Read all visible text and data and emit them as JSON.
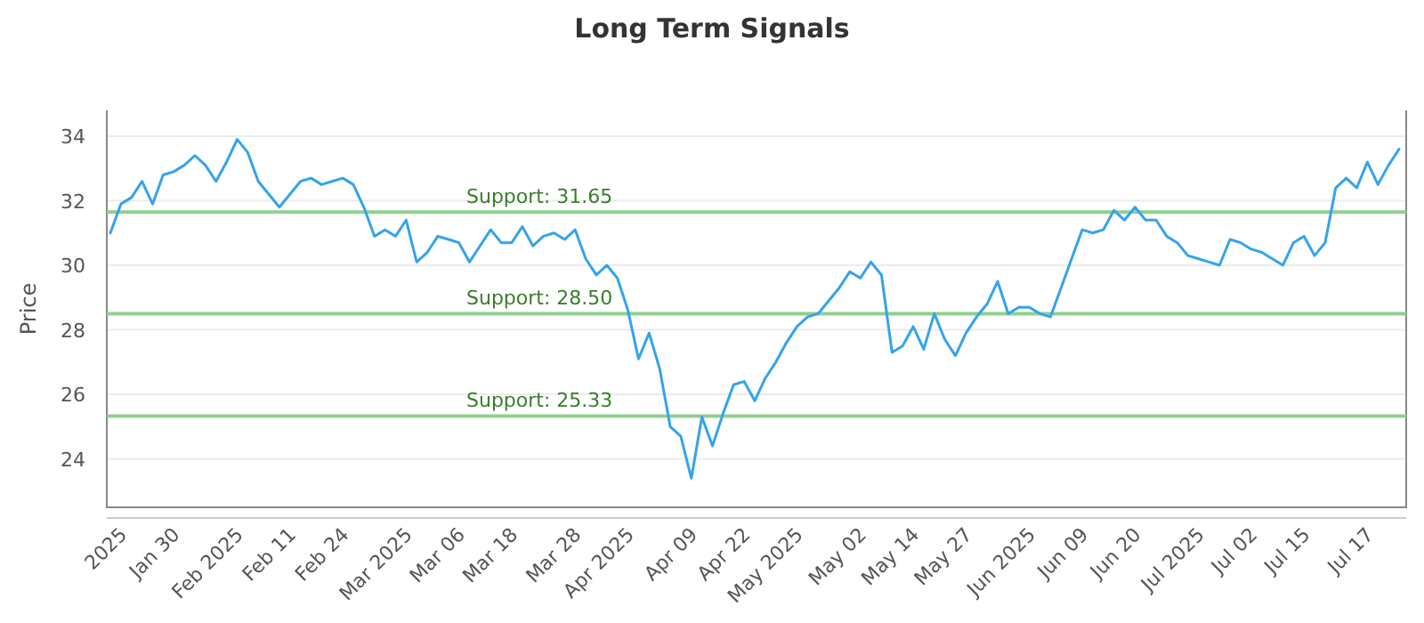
{
  "chart_data": {
    "type": "line",
    "title": "Long Term Signals",
    "ylabel": "Price",
    "categories": [
      null,
      "2025",
      null,
      null,
      null,
      null,
      "Jan 30",
      null,
      null,
      null,
      null,
      null,
      "Feb 2025",
      null,
      null,
      null,
      null,
      "Feb 11",
      null,
      null,
      null,
      null,
      "Feb 24",
      null,
      null,
      null,
      null,
      null,
      "Mar 2025",
      null,
      null,
      null,
      null,
      "Mar 06",
      null,
      null,
      null,
      null,
      "Mar 18",
      null,
      null,
      null,
      null,
      null,
      "Mar 28",
      null,
      null,
      null,
      null,
      "Apr 2025",
      null,
      null,
      null,
      null,
      null,
      "Apr 09",
      null,
      null,
      null,
      null,
      "Apr 22",
      null,
      null,
      null,
      null,
      "May 2025",
      null,
      null,
      null,
      null,
      null,
      "May 02",
      null,
      null,
      null,
      null,
      "May 14",
      null,
      null,
      null,
      null,
      "May 27",
      null,
      null,
      null,
      null,
      null,
      "Jun 2025",
      null,
      null,
      null,
      null,
      "Jun 09",
      null,
      null,
      null,
      null,
      "Jun 20",
      null,
      null,
      null,
      null,
      null,
      "Jul 2025",
      null,
      null,
      null,
      null,
      "Jul 02",
      null,
      null,
      null,
      null,
      "Jul 15",
      null,
      null,
      null,
      null,
      null,
      "Jul 17",
      null,
      null,
      null
    ],
    "series": [
      {
        "color": "#35a3ec",
        "values": [
          31.0,
          31.9,
          32.1,
          32.6,
          31.9,
          32.8,
          32.9,
          33.1,
          33.4,
          33.1,
          32.6,
          33.2,
          33.9,
          33.5,
          32.6,
          32.2,
          31.8,
          32.2,
          32.6,
          32.7,
          32.5,
          32.6,
          32.7,
          32.5,
          31.8,
          30.9,
          31.1,
          30.9,
          31.4,
          30.1,
          30.4,
          30.9,
          30.8,
          30.7,
          30.1,
          30.6,
          31.1,
          30.7,
          30.7,
          31.2,
          30.6,
          30.9,
          31.0,
          30.8,
          31.1,
          30.2,
          29.7,
          30.0,
          29.6,
          28.6,
          27.1,
          27.9,
          26.8,
          25.0,
          24.7,
          23.4,
          25.3,
          24.4,
          25.4,
          26.3,
          26.4,
          25.8,
          26.5,
          27.0,
          27.6,
          28.1,
          28.4,
          28.5,
          28.9,
          29.3,
          29.8,
          29.6,
          30.1,
          29.7,
          27.3,
          27.5,
          28.1,
          27.4,
          28.5,
          27.7,
          27.2,
          27.9,
          28.4,
          28.8,
          29.5,
          28.5,
          28.7,
          28.7,
          28.5,
          28.4,
          29.3,
          30.2,
          31.1,
          31.0,
          31.1,
          31.7,
          31.4,
          31.8,
          31.4,
          31.4,
          30.9,
          30.7,
          30.3,
          30.2,
          30.1,
          30.0,
          30.8,
          30.7,
          30.5,
          30.4,
          30.2,
          30.0,
          30.7,
          30.9,
          30.3,
          30.7,
          32.4,
          32.7,
          32.4,
          33.2,
          32.5,
          33.1,
          33.6
        ]
      }
    ],
    "ylim": [
      22.5,
      34.8
    ],
    "yticks": [
      24,
      26,
      28,
      30,
      32,
      34
    ],
    "grid": "y",
    "ref_lines": [
      {
        "axis": "y",
        "value": 31.65,
        "label": "Support: 31.65",
        "color": "#8fd18f"
      },
      {
        "axis": "y",
        "value": 28.5,
        "label": "Support: 28.50",
        "color": "#8fd18f"
      },
      {
        "axis": "y",
        "value": 25.33,
        "label": "Support: 25.33",
        "color": "#8fd18f"
      }
    ]
  }
}
